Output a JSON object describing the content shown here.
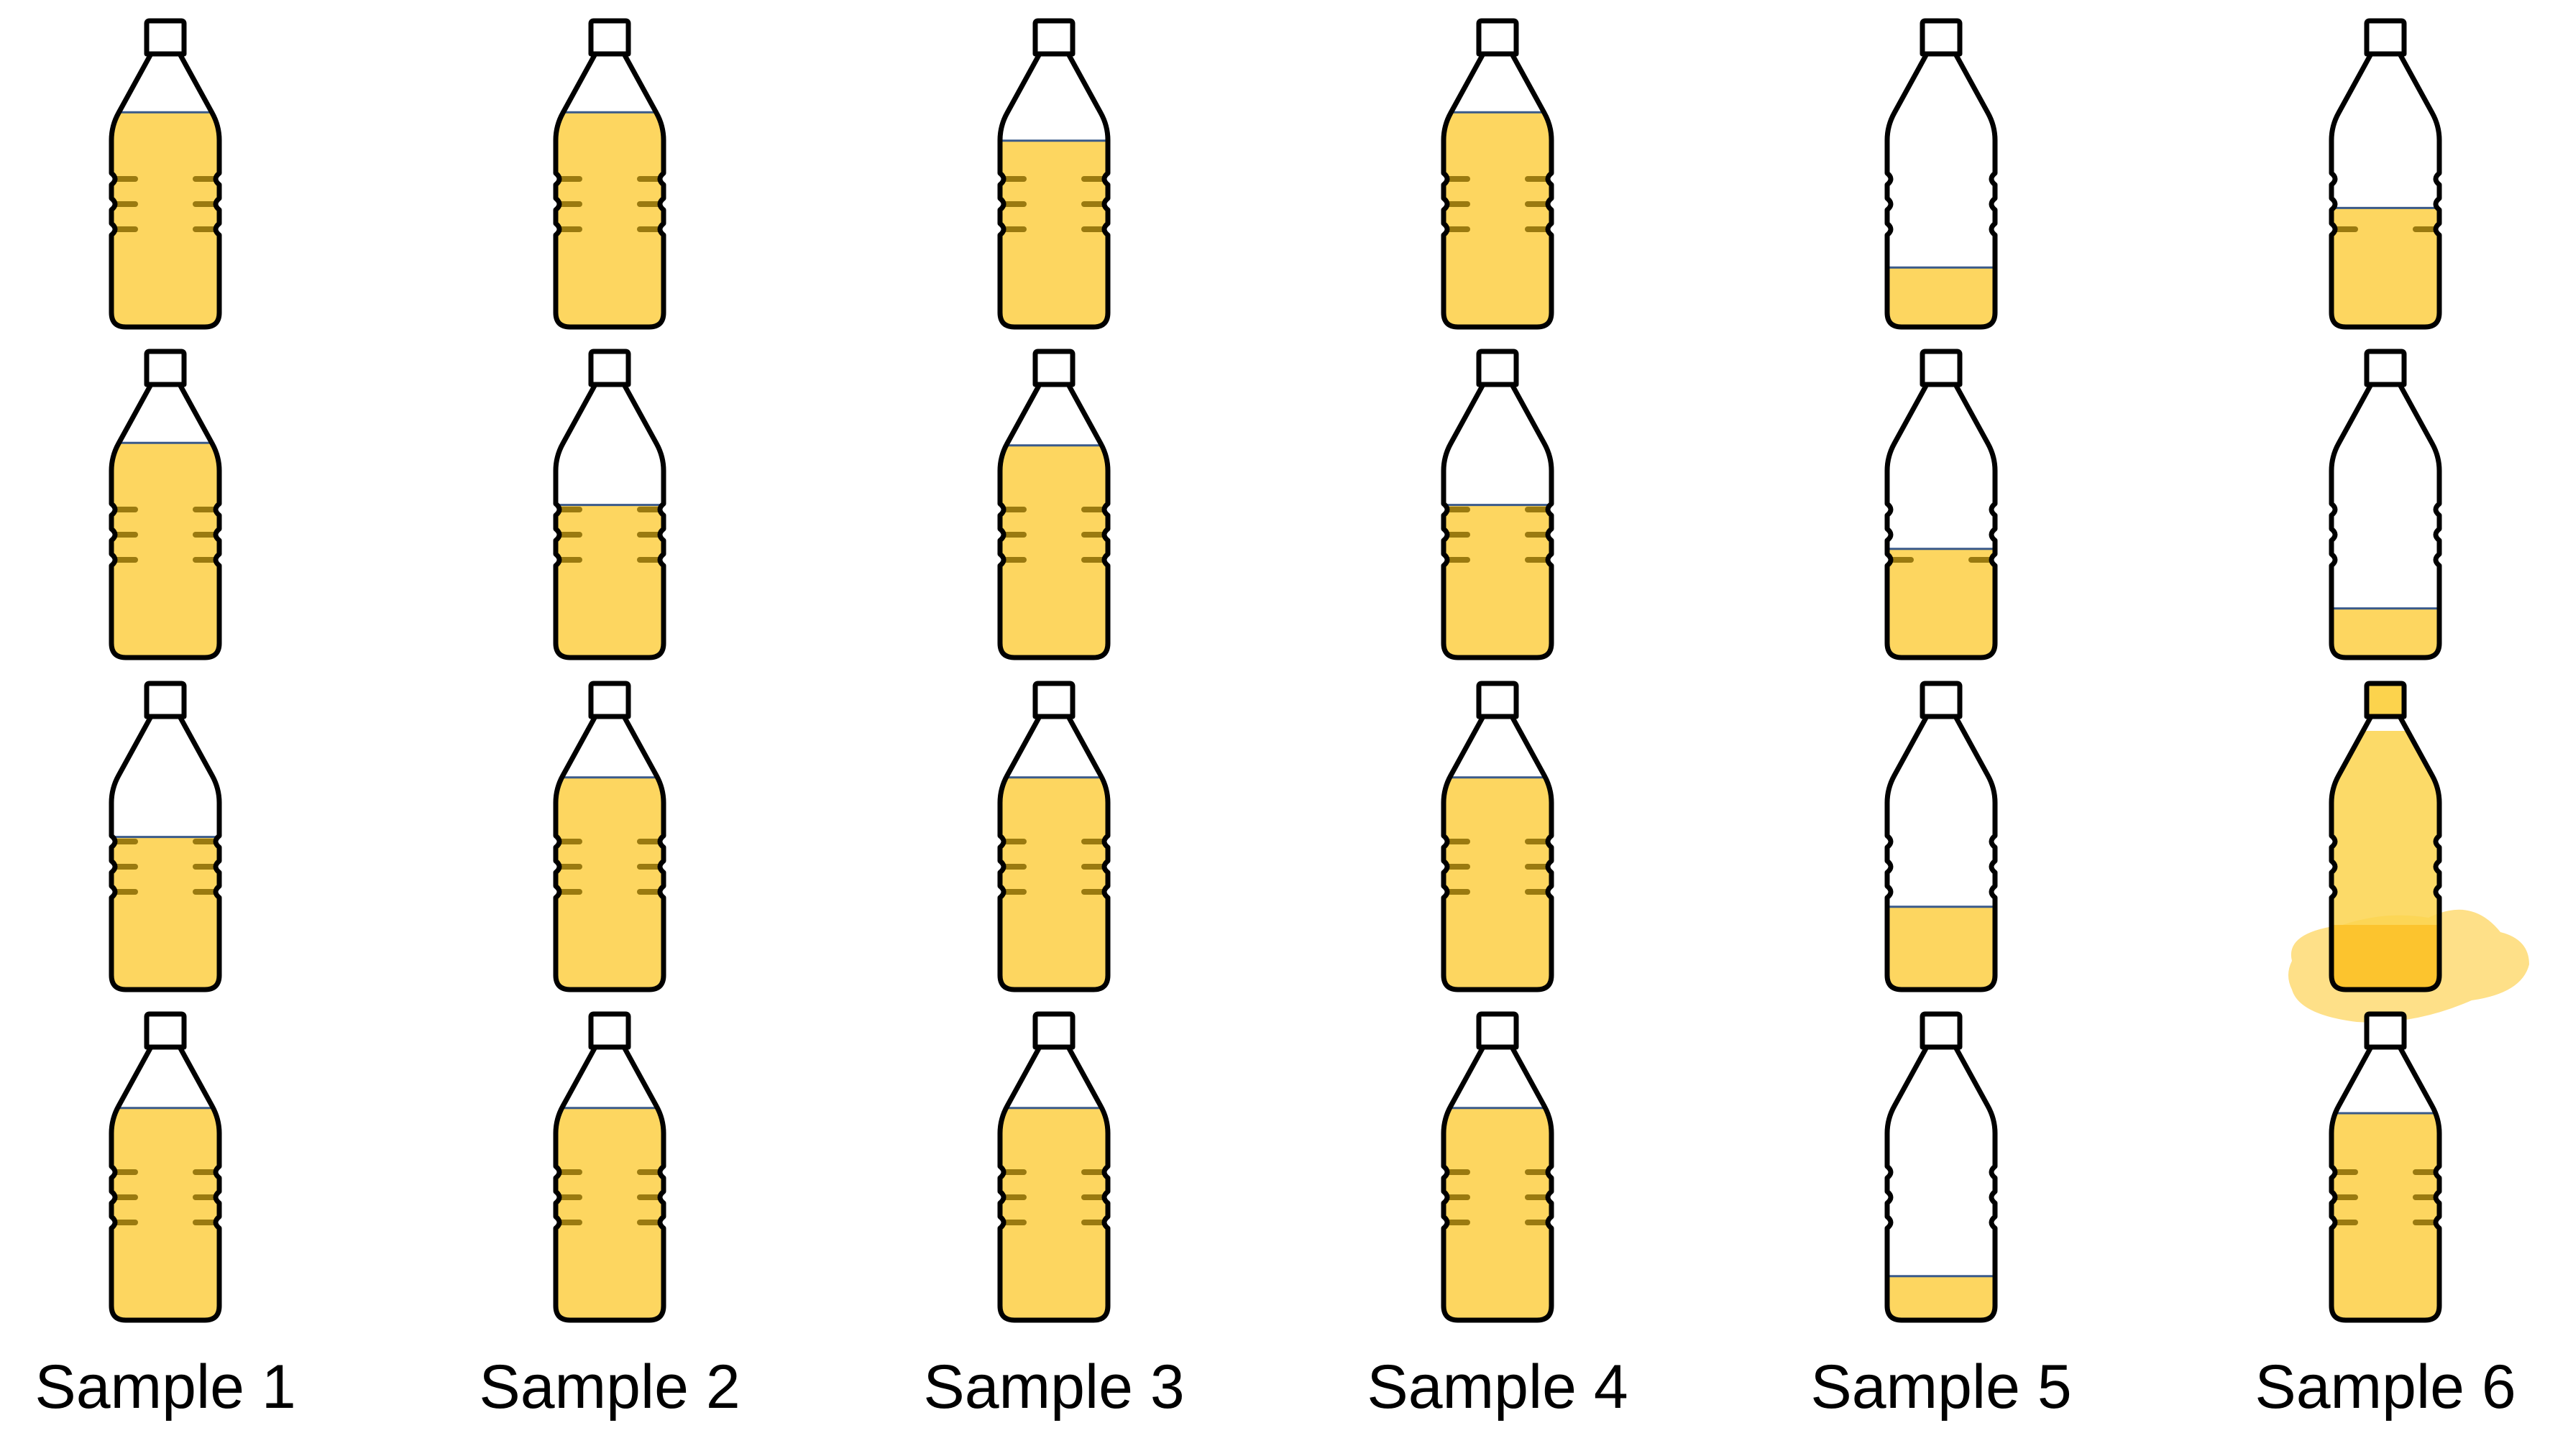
{
  "colors": {
    "liquid": "#fdd660",
    "liquid_dark": "#9a7a10",
    "surface_line": "#3a5a8a",
    "outline": "#000000",
    "spill": "#fdd660",
    "spill_core": "#fbbf24"
  },
  "icons": {
    "bottle": "bottle-icon",
    "spill": "spill-puddle-icon"
  },
  "samples": [
    {
      "label": "Sample 1",
      "fill_levels": [
        0.83,
        0.83,
        0.59,
        0.82
      ]
    },
    {
      "label": "Sample 2",
      "fill_levels": [
        0.83,
        0.59,
        0.82,
        0.82
      ]
    },
    {
      "label": "Sample 3",
      "fill_levels": [
        0.72,
        0.82,
        0.82,
        0.82
      ]
    },
    {
      "label": "Sample 4",
      "fill_levels": [
        0.83,
        0.59,
        0.82,
        0.82
      ]
    },
    {
      "label": "Sample 5",
      "fill_levels": [
        0.23,
        0.42,
        0.32,
        0.17
      ]
    },
    {
      "label": "Sample 6",
      "fill_levels": [
        0.46,
        0.19,
        "spilled",
        0.8
      ]
    }
  ]
}
